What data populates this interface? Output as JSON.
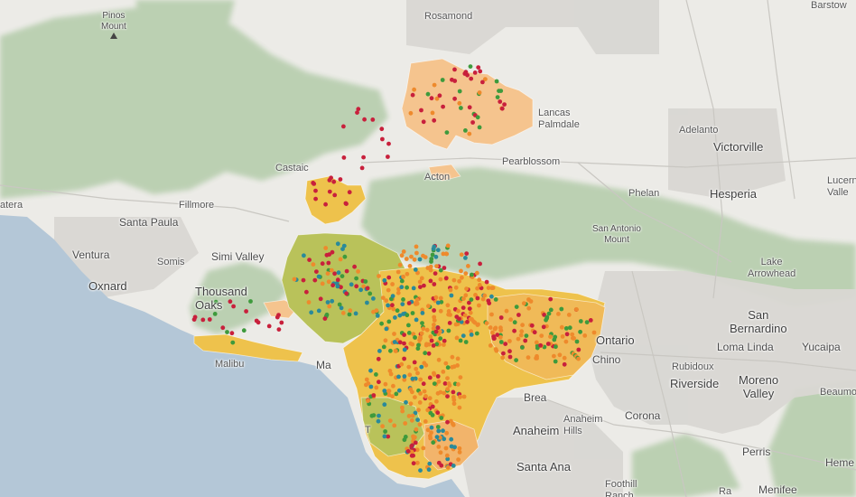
{
  "map": {
    "colors": {
      "ocean": "#b3c6d6",
      "land": "#ecebe7",
      "forest": "#b7cfae",
      "urban": "#dcdad6",
      "region_olive": "#b9c25a",
      "region_yellow": "#eec24c",
      "region_orange": "#f2b46b",
      "region_peach": "#f5c48e",
      "dot_red": "#c8203c",
      "dot_orange": "#ee8a2c",
      "dot_green": "#3e9a3c",
      "dot_teal": "#2a8a9a"
    },
    "labels": {
      "pinos_mount": "Pinos\nMount",
      "rosamond": "Rosamond",
      "barstow": "Barstow",
      "adelanto": "Adelanto",
      "victorville": "Victorville",
      "hesperia": "Hesperia",
      "lucerne": "Lucern\nValle",
      "phelan": "Phelan",
      "pearblossom": "Pearblossom",
      "castaic": "Castaic",
      "acton": "Acton",
      "lancaster": "Lancas\nPalmdale",
      "fillmore": "Fillmore",
      "santa_paula": "Santa Paula",
      "ventura": "Ventura",
      "oxnard": "Oxnard",
      "somis": "Somis",
      "simi_valley": "Simi Valley",
      "thousand_oaks": "Thousand\nOaks",
      "malibu": "Malibu",
      "marina": "Ma",
      "san_antonio": "San Antonio\nMount",
      "lake_arrowhead": "Lake\nArrowhead",
      "san_bernardino": "San\nBernardino",
      "loma_linda": "Loma Linda",
      "yucaipa": "Yucaipa",
      "ontario": "Ontario",
      "chino": "Chino",
      "rubidoux": "Rubidoux",
      "riverside": "Riverside",
      "moreno_valley": "Moreno\nValley",
      "beaumont": "Beaumo",
      "brea": "Brea",
      "anaheim_hills": "Anaheim\nHills",
      "anaheim": "Anaheim",
      "corona": "Corona",
      "santa_ana": "Santa Ana",
      "perris": "Perris",
      "foothill": "Foothill\nRanch",
      "menifee": "Menifee",
      "hemet": "Heme",
      "ra": "Ra",
      "torrance": "T",
      "atera": "atera"
    },
    "icons": {
      "pinos_peak": "mountain-peak-icon",
      "san_antonio_peak": "mountain-peak-icon"
    }
  }
}
